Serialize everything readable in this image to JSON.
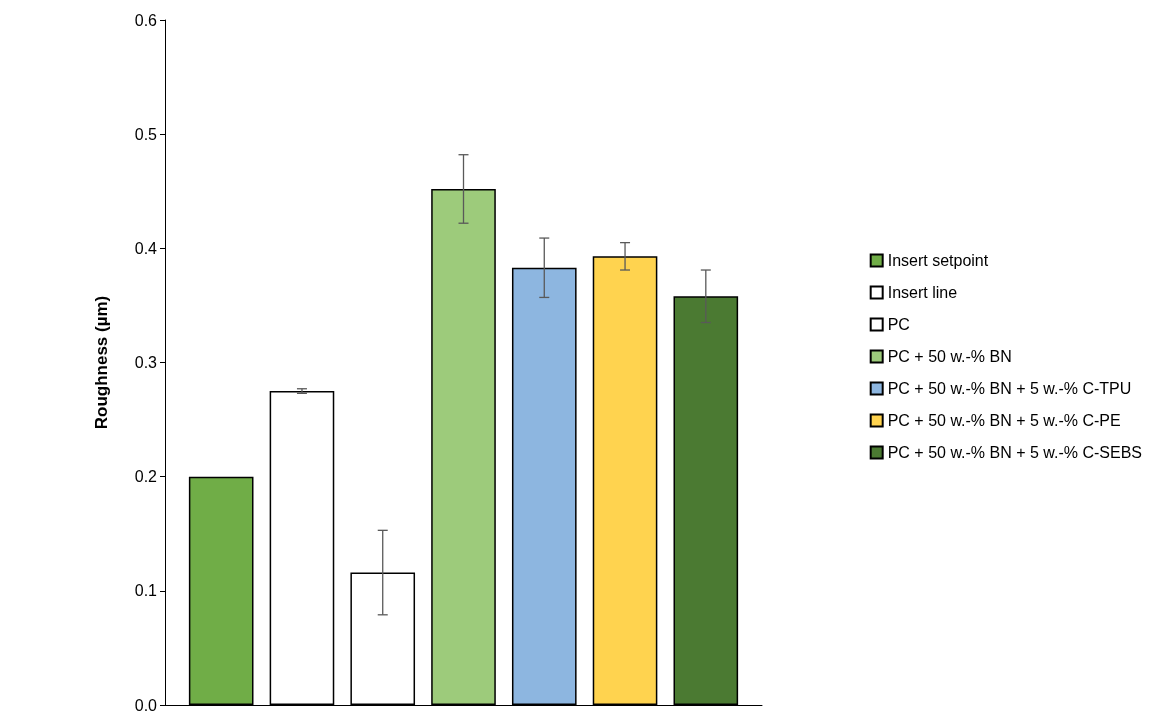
{
  "chart_data": {
    "type": "bar",
    "ylabel": "Roughness (µm)",
    "categories": [
      null
    ],
    "series": [
      {
        "name": "Insert setpoint",
        "color": "#70ad47",
        "values": [
          0.2
        ]
      },
      {
        "name": "Insert line",
        "color": "#ffffff",
        "values": [
          0.275
        ],
        "errors": [
          0.002
        ]
      },
      {
        "name": "PC",
        "color": "#ffffff",
        "values": [
          0.116
        ],
        "errors": [
          0.037
        ]
      },
      {
        "name": "PC + 50 w.-% BN",
        "color": "#9dcb7b",
        "values": [
          0.452
        ],
        "errors": [
          0.03
        ]
      },
      {
        "name": "PC + 50 w.-% BN + 5 w.-% C-TPU",
        "color": "#8db6e0",
        "values": [
          0.383
        ],
        "errors": [
          0.026
        ]
      },
      {
        "name": "PC + 50 w.-% BN + 5 w.-% C-PE",
        "color": "#ffd34f",
        "values": [
          0.393
        ],
        "errors": [
          0.012
        ]
      },
      {
        "name": "PC + 50 w.-% BN + 5 w.-% C-SEBS",
        "color": "#4b7a32",
        "values": [
          0.358
        ],
        "errors": [
          0.023
        ]
      }
    ],
    "ylim": [
      0,
      0.6
    ],
    "yticks": [
      {
        "value": 0,
        "label": "0.0"
      },
      {
        "value": 0.1,
        "label": "0.1"
      },
      {
        "value": 0.2,
        "label": "0.2"
      },
      {
        "value": 0.3,
        "label": "0.3"
      },
      {
        "value": 0.4,
        "label": "0.4"
      },
      {
        "value": 0.5,
        "label": "0.5"
      },
      {
        "value": 0.6,
        "label": "0.6"
      }
    ],
    "grid": false,
    "legend": "right"
  }
}
